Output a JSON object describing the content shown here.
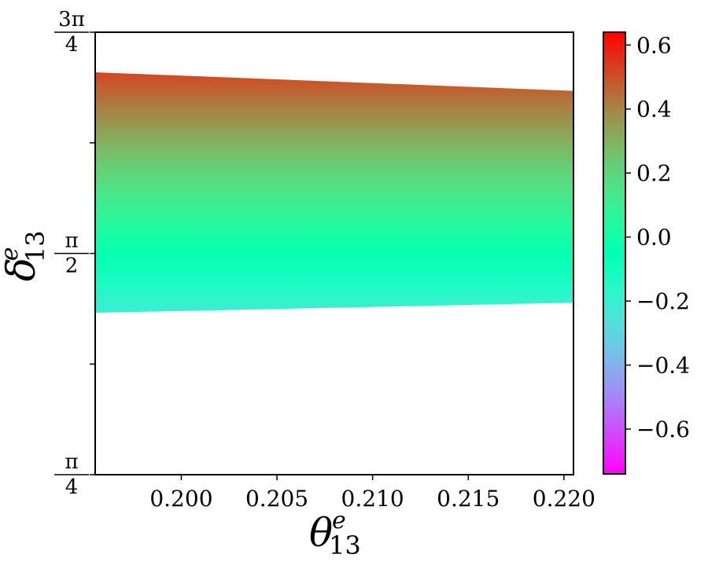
{
  "chart_data": {
    "type": "heatmap",
    "xlabel": {
      "base": "θ",
      "sup": "e",
      "sub": "13"
    },
    "ylabel": {
      "base": "δ",
      "sup": "e",
      "sub": "13"
    },
    "xlim": [
      0.1955,
      0.2205
    ],
    "ylim": [
      0.7854,
      2.3562
    ],
    "x_ticks": [
      {
        "value": 0.2,
        "label": "0.200"
      },
      {
        "value": 0.205,
        "label": "0.205"
      },
      {
        "value": 0.21,
        "label": "0.210"
      },
      {
        "value": 0.215,
        "label": "0.215"
      },
      {
        "value": 0.22,
        "label": "0.220"
      }
    ],
    "y_ticks": [
      {
        "value": 0.7854,
        "num": "π",
        "den": "4"
      },
      {
        "value": 1.1781,
        "num": "",
        "den": ""
      },
      {
        "value": 1.5708,
        "num": "π",
        "den": "2"
      },
      {
        "value": 1.9635,
        "num": "",
        "den": ""
      },
      {
        "value": 2.3562,
        "num": "3π",
        "den": "4"
      }
    ],
    "region": {
      "x": [
        0.1955,
        0.2205
      ],
      "upper_bound": [
        2.214,
        2.148
      ],
      "lower_bound": [
        1.36,
        1.396
      ],
      "value_at_top": 0.52,
      "value_at_bottom": -0.22
    },
    "colorbar": {
      "colormap": "rainbow",
      "range": [
        -0.74,
        0.64
      ],
      "ticks": [
        {
          "value": 0.6,
          "label": "0.6"
        },
        {
          "value": 0.4,
          "label": "0.4"
        },
        {
          "value": 0.2,
          "label": "0.2"
        },
        {
          "value": 0.0,
          "label": "0.0"
        },
        {
          "value": -0.2,
          "label": "−0.2"
        },
        {
          "value": -0.4,
          "label": "−0.4"
        },
        {
          "value": -0.6,
          "label": "−0.6"
        }
      ]
    }
  }
}
